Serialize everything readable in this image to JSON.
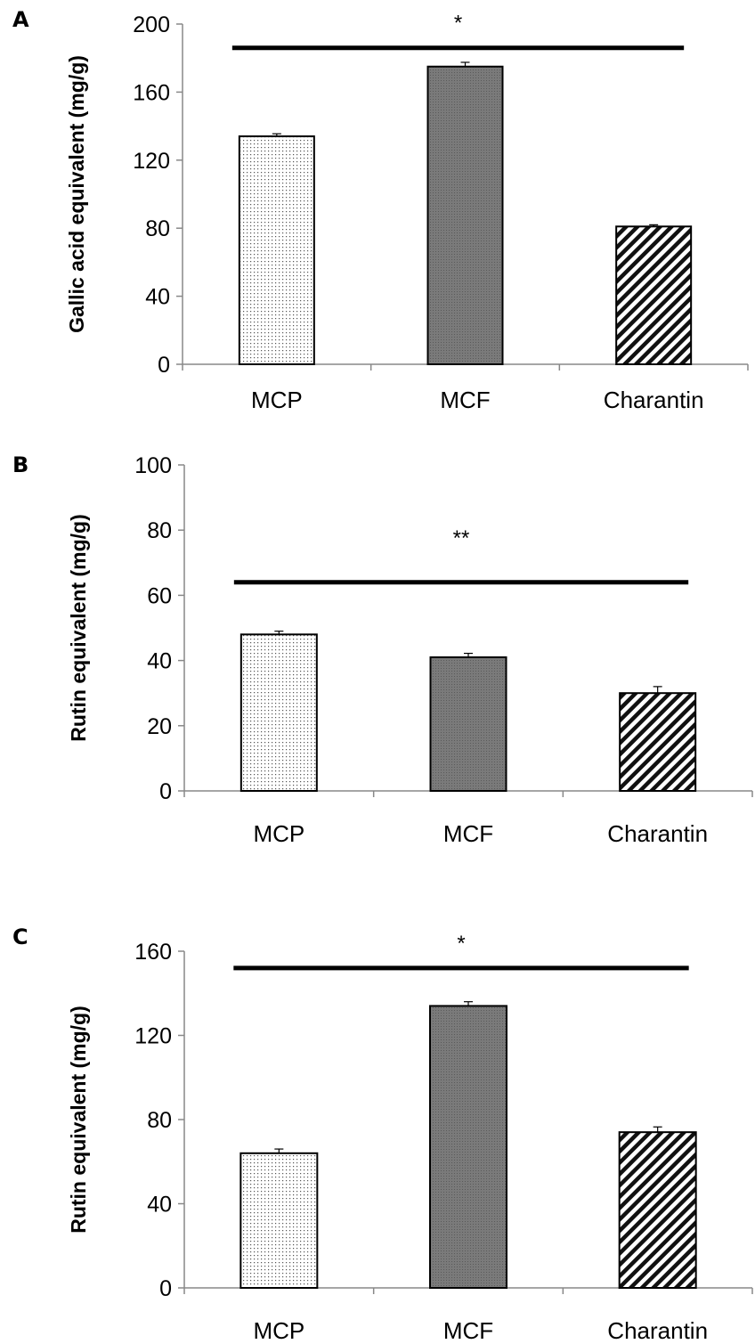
{
  "chart_data": [
    {
      "panel": "A",
      "type": "bar",
      "categories": [
        "MCP",
        "MCF",
        "Charantin"
      ],
      "values": [
        134,
        175,
        81
      ],
      "errors": [
        1.5,
        2.5,
        1.0
      ],
      "patterns": [
        "dots",
        "dense",
        "stripes"
      ],
      "xlabel": "",
      "ylabel": "Gallic acid equivalent (mg/g)",
      "ylim": [
        0,
        200
      ],
      "yticks": [
        "0",
        "40",
        "80",
        "120",
        "160",
        "200"
      ],
      "significance": {
        "label": "*",
        "level": 186
      },
      "grid": false,
      "legend": "none"
    },
    {
      "panel": "B",
      "type": "bar",
      "categories": [
        "MCP",
        "MCF",
        "Charantin"
      ],
      "values": [
        48,
        41,
        30
      ],
      "errors": [
        1.0,
        1.2,
        2.0
      ],
      "patterns": [
        "dots",
        "dense",
        "stripes"
      ],
      "xlabel": "",
      "ylabel": "Rutin equivalent (mg/g)",
      "ylim": [
        0,
        100
      ],
      "yticks": [
        "0",
        "20",
        "40",
        "60",
        "80",
        "100"
      ],
      "significance": {
        "label": "**",
        "level": 64
      },
      "grid": false,
      "legend": "none"
    },
    {
      "panel": "C",
      "type": "bar",
      "categories": [
        "MCP",
        "MCF",
        "Charantin"
      ],
      "values": [
        64,
        134,
        74
      ],
      "errors": [
        2.0,
        2.0,
        2.5
      ],
      "patterns": [
        "dots",
        "dense",
        "stripes"
      ],
      "xlabel": "",
      "ylabel": "Rutin equivalent (mg/g)",
      "ylim": [
        0,
        160
      ],
      "yticks": [
        "0",
        "40",
        "80",
        "120",
        "160"
      ],
      "significance": {
        "label": "*",
        "level": 152
      },
      "grid": false,
      "legend": "none"
    }
  ]
}
